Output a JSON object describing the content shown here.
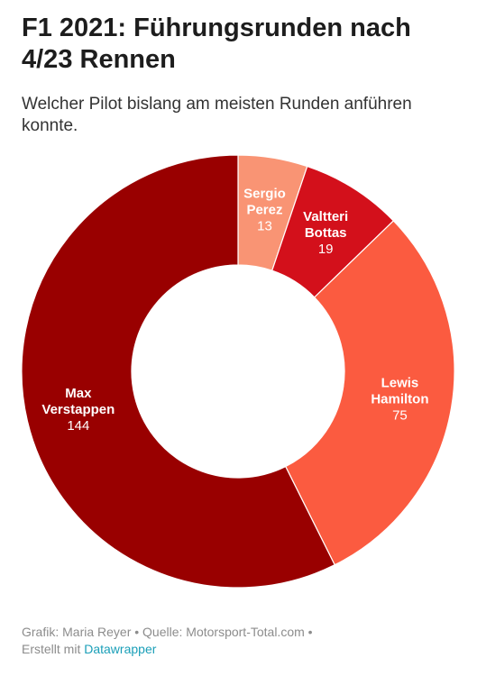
{
  "header": {
    "title": "F1 2021: Führungsrunden nach 4/23 Rennen",
    "subtitle": "Welcher Pilot bislang am meisten Runden anführen konnte."
  },
  "chart_data": {
    "type": "pie",
    "variant": "donut",
    "title": "F1 2021: Führungsrunden nach 4/23 Rennen",
    "subtitle": "Welcher Pilot bislang am meisten Runden anführen konnte.",
    "slices": [
      {
        "name_lines": [
          "Sergio",
          "Perez"
        ],
        "value": 13,
        "color": "#f99474"
      },
      {
        "name_lines": [
          "Valtteri",
          "Bottas"
        ],
        "value": 19,
        "color": "#d3101b"
      },
      {
        "name_lines": [
          "Lewis",
          "Hamilton"
        ],
        "value": 75,
        "color": "#fb5b40"
      },
      {
        "name_lines": [
          "Max",
          "Verstappen"
        ],
        "value": 144,
        "color": "#990000"
      }
    ],
    "start": "top, clockwise",
    "legend": "none (labels on slices)"
  },
  "footer": {
    "line1": "Grafik: Maria Reyer • Quelle: Motorsport-Total.com •",
    "line2_prefix": "Erstellt mit ",
    "link_label": "Datawrapper"
  }
}
